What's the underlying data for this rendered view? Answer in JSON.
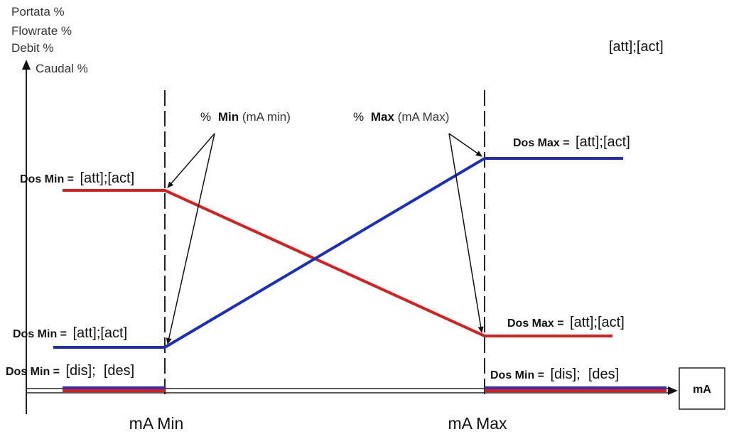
{
  "y_axis_labels": {
    "line1": "Portata %",
    "line2": "Flowrate %",
    "line3": "Debit %",
    "line4": "Caudal %"
  },
  "corner_label": "[att];[act]",
  "annotation_min": {
    "symbol": "%",
    "bold": "Min",
    "normal": "(mA min)"
  },
  "annotation_max": {
    "symbol": "%",
    "bold": "Max",
    "normal": "(mA Max)"
  },
  "labels": {
    "dos_min_high": {
      "bold": "Dos Min =",
      "normal": "[att];[act]"
    },
    "dos_min_low": {
      "bold": "Dos Min =",
      "normal": "[att];[act]"
    },
    "dos_min_dis_left": {
      "bold": "Dos Min =",
      "normal": "[dis];  [des]"
    },
    "dos_min_dis_right": {
      "bold": "Dos Min =",
      "normal": "[dis];  [des]"
    },
    "dos_max_high": {
      "bold": "Dos Max =",
      "normal": "[att];[act]"
    },
    "dos_max_low": {
      "bold": "Dos Max =",
      "normal": "[att];[act]"
    }
  },
  "x_labels": {
    "min": "mA Min",
    "max": "mA Max"
  },
  "x_axis_unit": "mA",
  "colors": {
    "red_series": "#d81e1e",
    "blue_series": "#1a2fc0",
    "axis": "#222222"
  }
}
